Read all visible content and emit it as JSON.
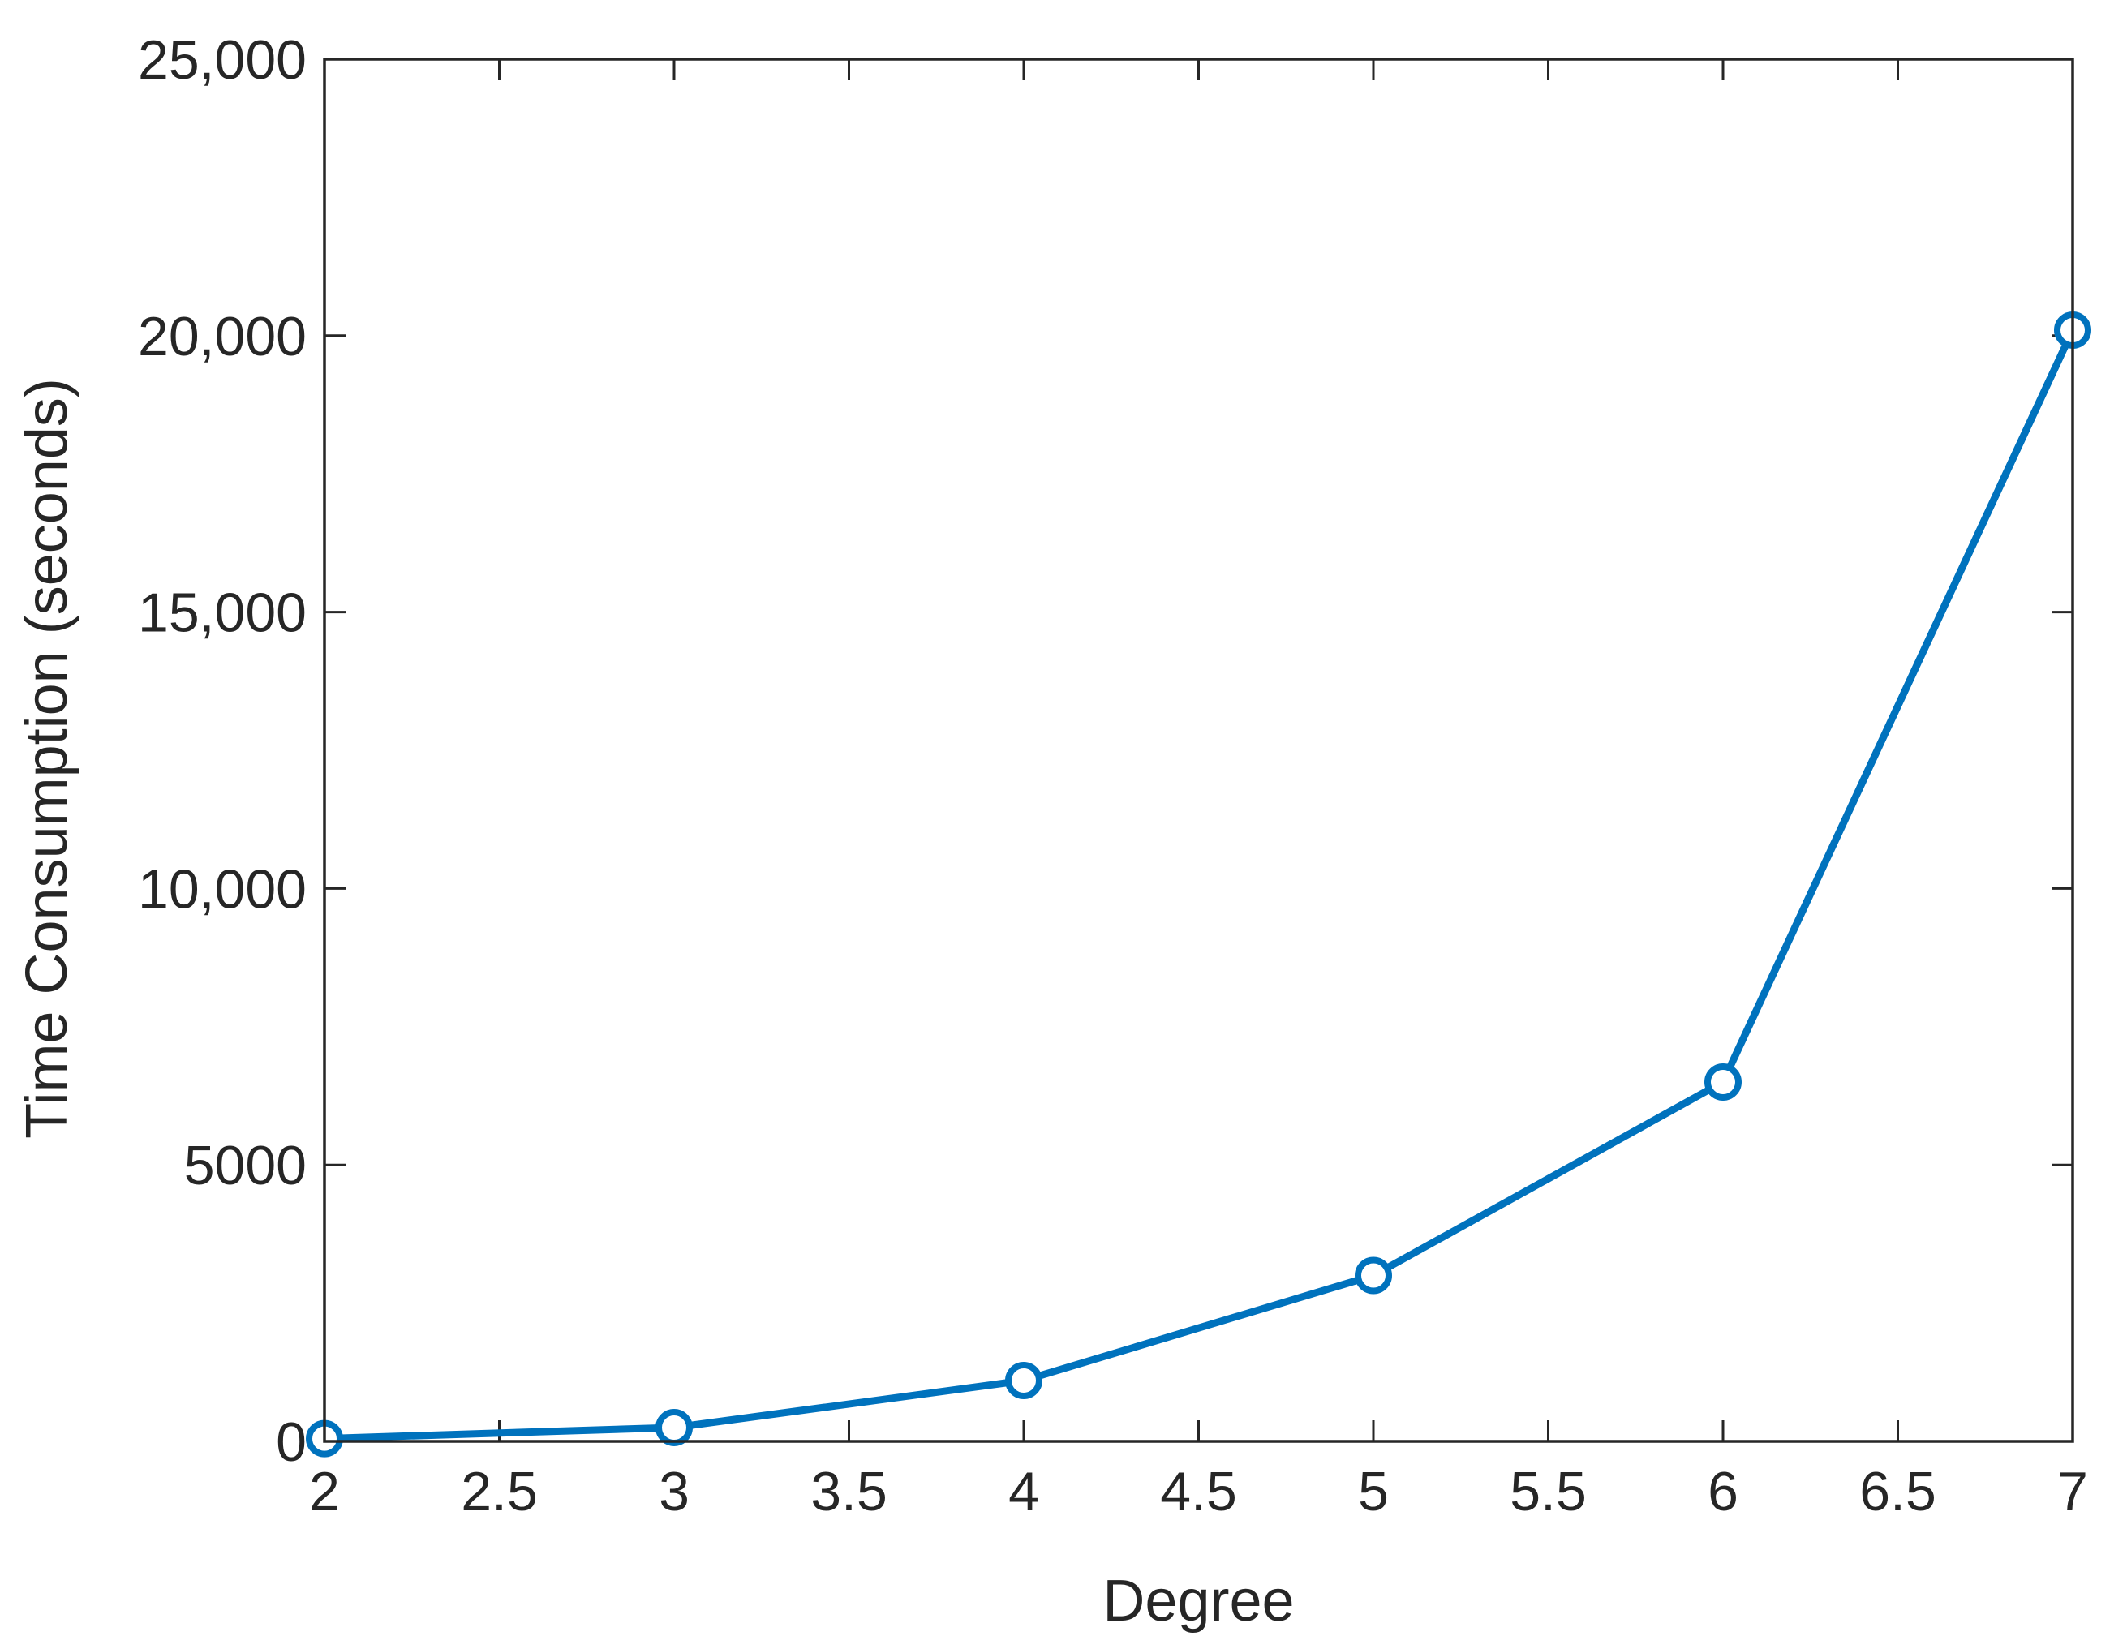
{
  "chart_data": {
    "type": "line",
    "title": "",
    "xlabel": "Degree",
    "ylabel": "Time Consumption (seconds)",
    "xlim": [
      2,
      7
    ],
    "ylim": [
      0,
      25000
    ],
    "x_ticks": [
      2,
      2.5,
      3,
      3.5,
      4,
      4.5,
      5,
      5.5,
      6,
      6.5,
      7
    ],
    "x_tick_labels": [
      "2",
      "2.5",
      "3",
      "3.5",
      "4",
      "4.5",
      "5",
      "5.5",
      "6",
      "6.5",
      "7"
    ],
    "y_ticks": [
      0,
      5000,
      10000,
      15000,
      20000,
      25000
    ],
    "y_tick_labels": [
      "0",
      "5000",
      "10,000",
      "15,000",
      "20,000",
      "25,000"
    ],
    "grid": false,
    "series": [
      {
        "x": [
          2,
          3,
          4,
          5,
          6,
          7
        ],
        "values": [
          50,
          250,
          1100,
          3000,
          6500,
          20100
        ],
        "color": "#0072BD",
        "marker": "circle"
      }
    ]
  }
}
